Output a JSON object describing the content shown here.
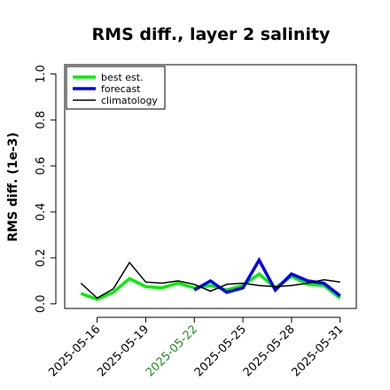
{
  "chart_data": {
    "type": "line",
    "title": "RMS diff., layer 2 salinity",
    "ylabel": "RMS diff. (1e-3)",
    "xlabel": "",
    "ylim": [
      -0.02,
      1.04
    ],
    "yticks": [
      0.0,
      0.2,
      0.4,
      0.6,
      0.8,
      1.0
    ],
    "ytick_labels": [
      "0.0",
      "0.2",
      "0.4",
      "0.6",
      "0.8",
      "1.0"
    ],
    "x_dates": [
      "2025-05-15",
      "2025-05-16",
      "2025-05-17",
      "2025-05-18",
      "2025-05-19",
      "2025-05-20",
      "2025-05-21",
      "2025-05-22",
      "2025-05-23",
      "2025-05-24",
      "2025-05-25",
      "2025-05-26",
      "2025-05-27",
      "2025-05-28",
      "2025-05-29",
      "2025-05-30",
      "2025-05-31"
    ],
    "xlim": [
      "2025-05-14",
      "2025-06-01"
    ],
    "xticks": [
      "2025-05-16",
      "2025-05-19",
      "2025-05-22",
      "2025-05-25",
      "2025-05-28",
      "2025-05-31"
    ],
    "xtick_colors": [
      "#000000",
      "#000000",
      "#228B22",
      "#000000",
      "#000000",
      "#000000"
    ],
    "legend_position": "top-left",
    "grid": false,
    "series": [
      {
        "name": "best est.",
        "color": "#00ee00",
        "values": [
          0.045,
          0.02,
          0.05,
          0.11,
          0.075,
          0.07,
          0.09,
          0.07,
          0.08,
          0.06,
          0.08,
          0.13,
          0.07,
          0.12,
          0.085,
          0.08,
          0.025
        ]
      },
      {
        "name": "forecast",
        "color": "#0000ee",
        "values": [
          null,
          null,
          null,
          null,
          null,
          null,
          null,
          0.06,
          0.1,
          0.05,
          0.07,
          0.19,
          0.06,
          0.13,
          0.1,
          0.09,
          0.035
        ]
      },
      {
        "name": "climatology",
        "color": "#000000",
        "values": [
          0.09,
          0.025,
          0.065,
          0.18,
          0.095,
          0.09,
          0.1,
          0.085,
          0.055,
          0.085,
          0.09,
          0.08,
          0.075,
          0.08,
          0.09,
          0.105,
          0.095
        ]
      }
    ]
  }
}
